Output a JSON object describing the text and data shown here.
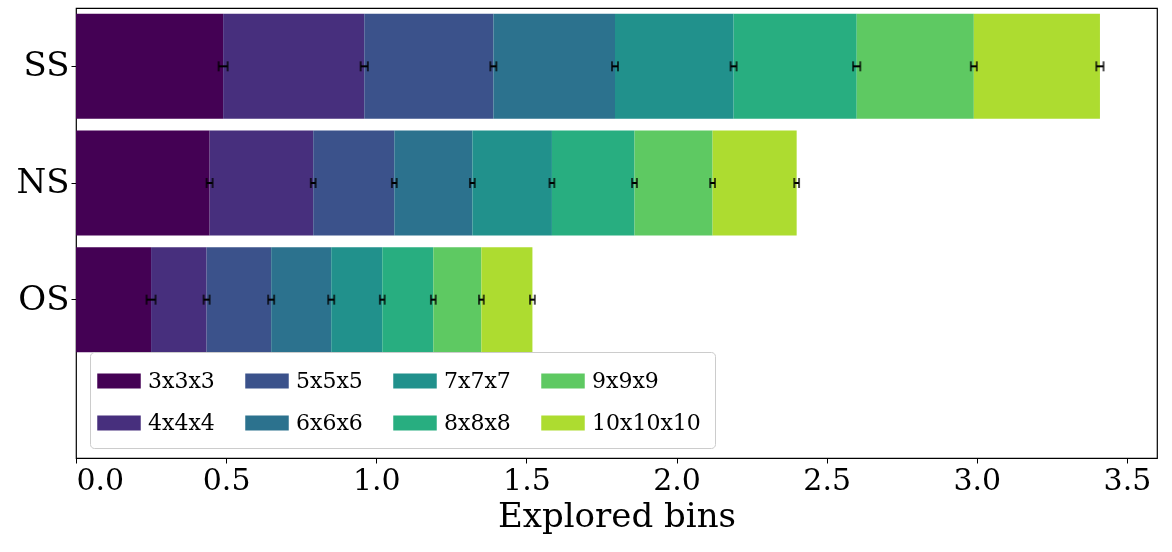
{
  "chart_data": {
    "type": "bar",
    "orientation": "horizontal",
    "stacked": true,
    "xlabel": "Explored bins",
    "categories": [
      "SS",
      "NS",
      "OS"
    ],
    "series": [
      {
        "name": "3x3x3",
        "color": "#440154",
        "values": [
          0.49,
          0.445,
          0.25
        ],
        "errors": [
          0.015,
          0.01,
          0.015
        ]
      },
      {
        "name": "4x4x4",
        "color": "#472f7d",
        "values": [
          0.47,
          0.345,
          0.185
        ],
        "errors": [
          0.012,
          0.008,
          0.01
        ]
      },
      {
        "name": "5x5x5",
        "color": "#3b528b",
        "values": [
          0.43,
          0.27,
          0.215
        ],
        "errors": [
          0.01,
          0.008,
          0.01
        ]
      },
      {
        "name": "6x6x6",
        "color": "#2c728e",
        "values": [
          0.405,
          0.26,
          0.2
        ],
        "errors": [
          0.01,
          0.008,
          0.01
        ]
      },
      {
        "name": "7x7x7",
        "color": "#21918c",
        "values": [
          0.395,
          0.265,
          0.17
        ],
        "errors": [
          0.01,
          0.008,
          0.008
        ]
      },
      {
        "name": "8x8x8",
        "color": "#28ae80",
        "values": [
          0.41,
          0.275,
          0.17
        ],
        "errors": [
          0.012,
          0.008,
          0.008
        ]
      },
      {
        "name": "9x9x9",
        "color": "#5ec962",
        "values": [
          0.39,
          0.26,
          0.16
        ],
        "errors": [
          0.01,
          0.008,
          0.008
        ]
      },
      {
        "name": "10x10x10",
        "color": "#addc30",
        "values": [
          0.42,
          0.28,
          0.17
        ],
        "errors": [
          0.012,
          0.008,
          0.008
        ]
      }
    ],
    "xlim": [
      0,
      3.6
    ],
    "xticks": [
      {
        "value": 0,
        "label": "0.0"
      },
      {
        "value": 0.5,
        "label": "0.5"
      },
      {
        "value": 1,
        "label": "1.0"
      },
      {
        "value": 1.5,
        "label": "1.5"
      },
      {
        "value": 2,
        "label": "2.0"
      },
      {
        "value": 2.5,
        "label": "2.5"
      },
      {
        "value": 3,
        "label": "3.0"
      },
      {
        "value": 3.5,
        "label": "3.5"
      }
    ],
    "grid": false,
    "legend": "bottom left"
  }
}
